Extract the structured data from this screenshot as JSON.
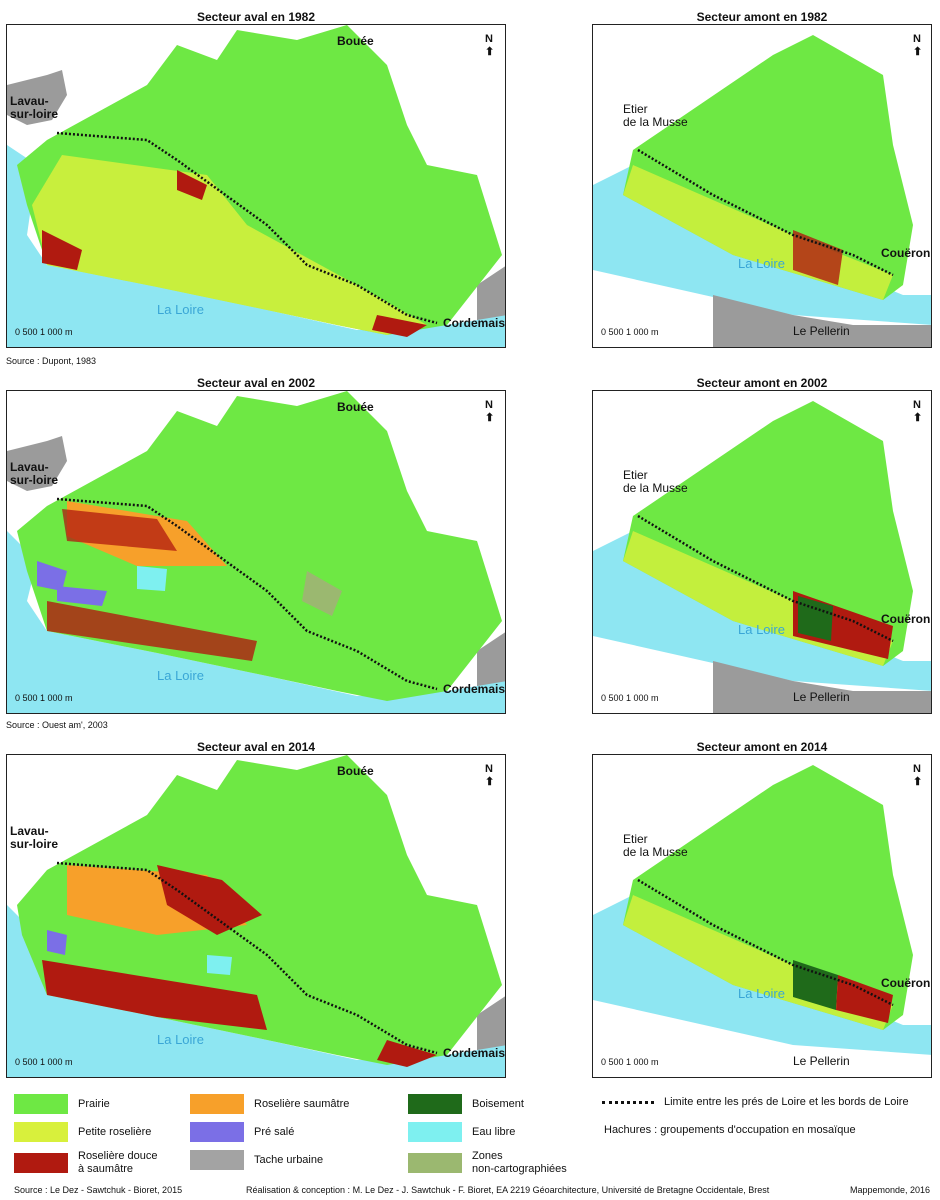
{
  "panels": [
    {
      "title": "Secteur aval en 1982"
    },
    {
      "title": "Secteur amont en 1982"
    },
    {
      "title": "Secteur aval en 2002"
    },
    {
      "title": "Secteur amont en 2002"
    },
    {
      "title": "Secteur aval en 2014"
    },
    {
      "title": "Secteur amont en 2014"
    }
  ],
  "places": {
    "bouee": "Bouée",
    "lavau": "Lavau-\nsur-loire",
    "cordemais": "Cordemais",
    "loire": "La Loire",
    "etier": "Etier\nde la Musse",
    "coueron": "Couëron",
    "pellerin": "Le Pellerin"
  },
  "north_label": "N",
  "scale_label": "0      500    1 000 m",
  "sources": [
    "Source : Dupont, 1983",
    "Source : Ouest am', 2003"
  ],
  "legend": [
    {
      "label": "Prairie",
      "color": "#6ee844"
    },
    {
      "label": "Petite roselière",
      "color": "#d8f03c"
    },
    {
      "label": "Roselière douce\nà saumâtre",
      "color": "#b01a10"
    },
    {
      "label": "Roselière saumâtre",
      "color": "#f7a02a"
    },
    {
      "label": "Pré salé",
      "color": "#7b6fe6"
    },
    {
      "label": "Tache urbaine",
      "color": "#a3a3a3"
    },
    {
      "label": "Boisement",
      "color": "#1f6a1a"
    },
    {
      "label": "Eau libre",
      "color": "#7ef0f0"
    },
    {
      "label": "Zones\nnon-cartographiées",
      "color": "#9bb870"
    }
  ],
  "legend_line": "Limite entre les prés de Loire et les bords de Loire",
  "legend_hatch": "Hachures : groupements d'occupation en mosaïque",
  "footer": {
    "source": "Source :  Le Dez - Sawtchuk - Bioret, 2015",
    "credit": "Réalisation & conception : M. Le Dez - J. Sawtchuk - F. Bioret, EA 2219 Géoarchitecture, Université de Bretagne Occidentale, Brest",
    "mappemonde": "Mappemonde, 2016"
  },
  "colors": {
    "river": "#8ee6f2",
    "urban": "#9b9b9b",
    "prairie": "#6ee844"
  }
}
